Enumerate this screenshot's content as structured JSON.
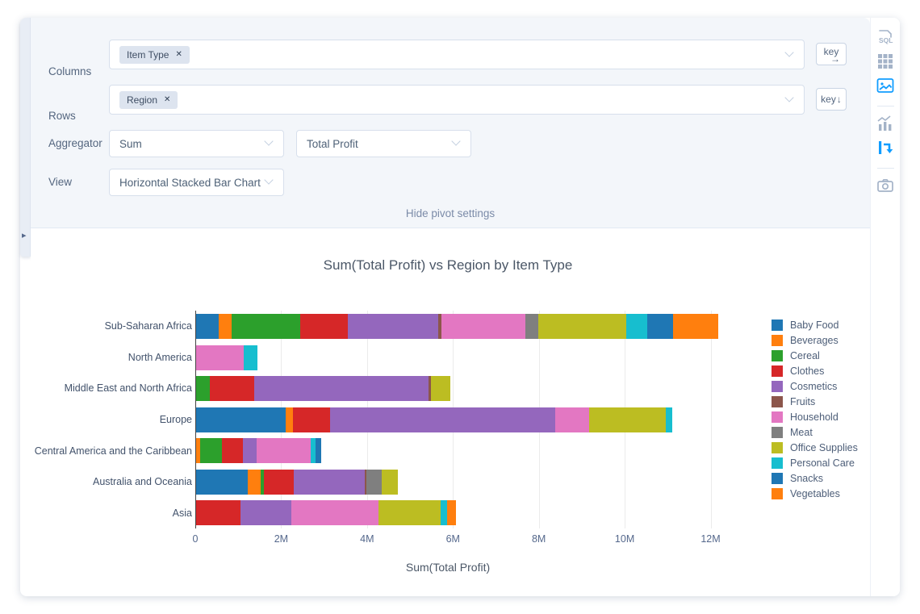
{
  "pivot_settings": {
    "columns": {
      "label": "Columns",
      "tags": [
        "Item Type"
      ]
    },
    "rows": {
      "label": "Rows",
      "tags": [
        "Region"
      ]
    },
    "aggregator": {
      "label": "Aggregator",
      "value": "Sum",
      "field": "Total Profit"
    },
    "view": {
      "label": "View",
      "value": "Horizontal Stacked Bar Chart"
    },
    "key_buttons": {
      "columns_text": "key",
      "columns_arrow": "→",
      "rows_text": "key",
      "rows_arrow": "↓"
    },
    "hide_link": "Hide pivot settings",
    "remove_tag_glyph": "✕",
    "drawer_arrow": "▸"
  },
  "sidebar": {
    "active_color": "#119dff",
    "inactive_color": "#a4b3c8",
    "icons": [
      {
        "name": "sql",
        "label": "SQL",
        "active": false
      },
      {
        "name": "table",
        "active": false
      },
      {
        "name": "chart-image",
        "active": true
      },
      {
        "name": "chart-builder",
        "active": false
      },
      {
        "name": "pivot",
        "active": true
      },
      {
        "name": "camera",
        "active": false
      }
    ]
  },
  "chart_data": {
    "type": "bar",
    "orientation": "horizontal",
    "stacked": true,
    "title": "Sum(Total Profit) vs Region by Item Type",
    "xlabel": "Sum(Total Profit)",
    "ylabel": "",
    "grid": true,
    "legend_position": "right",
    "xlim": [
      0,
      12930000
    ],
    "x_ticks": [
      {
        "value": 0,
        "label": "0"
      },
      {
        "value": 2000000,
        "label": "2M"
      },
      {
        "value": 4000000,
        "label": "4M"
      },
      {
        "value": 6000000,
        "label": "6M"
      },
      {
        "value": 8000000,
        "label": "8M"
      },
      {
        "value": 10000000,
        "label": "10M"
      },
      {
        "value": 12000000,
        "label": "12M"
      }
    ],
    "categories": [
      "Sub-Saharan Africa",
      "North America",
      "Middle East and North Africa",
      "Europe",
      "Central America and the Caribbean",
      "Australia and Oceania",
      "Asia"
    ],
    "series": [
      {
        "name": "Baby Food",
        "color": "#1f77b4",
        "values": [
          550000,
          0,
          0,
          2100000,
          0,
          1220000,
          0
        ]
      },
      {
        "name": "Beverages",
        "color": "#ff7f0e",
        "values": [
          300000,
          0,
          0,
          170000,
          120000,
          300000,
          0
        ]
      },
      {
        "name": "Cereal",
        "color": "#2ca02c",
        "values": [
          1600000,
          0,
          330000,
          0,
          500000,
          80000,
          0
        ]
      },
      {
        "name": "Clothes",
        "color": "#d62728",
        "values": [
          1100000,
          0,
          1050000,
          870000,
          480000,
          700000,
          1050000
        ]
      },
      {
        "name": "Cosmetics",
        "color": "#9467bd",
        "values": [
          2100000,
          0,
          4050000,
          5250000,
          330000,
          1650000,
          1180000
        ]
      },
      {
        "name": "Fruits",
        "color": "#8c564b",
        "values": [
          80000,
          0,
          60000,
          0,
          0,
          40000,
          0
        ]
      },
      {
        "name": "Household",
        "color": "#e377c2",
        "values": [
          1950000,
          1130000,
          0,
          780000,
          1250000,
          0,
          2030000
        ]
      },
      {
        "name": "Meat",
        "color": "#7f7f7f",
        "values": [
          300000,
          0,
          0,
          0,
          0,
          350000,
          0
        ]
      },
      {
        "name": "Office Supplies",
        "color": "#bcbd22",
        "values": [
          2050000,
          0,
          450000,
          1780000,
          0,
          380000,
          1450000
        ]
      },
      {
        "name": "Personal Care",
        "color": "#17becf",
        "values": [
          500000,
          320000,
          0,
          150000,
          130000,
          0,
          150000
        ]
      },
      {
        "name": "Snacks",
        "color": "#1f77b4",
        "values": [
          600000,
          0,
          0,
          0,
          120000,
          0,
          0
        ]
      },
      {
        "name": "Vegetables",
        "color": "#ff7f0e",
        "values": [
          1050000,
          0,
          0,
          0,
          0,
          0,
          220000
        ]
      }
    ]
  }
}
